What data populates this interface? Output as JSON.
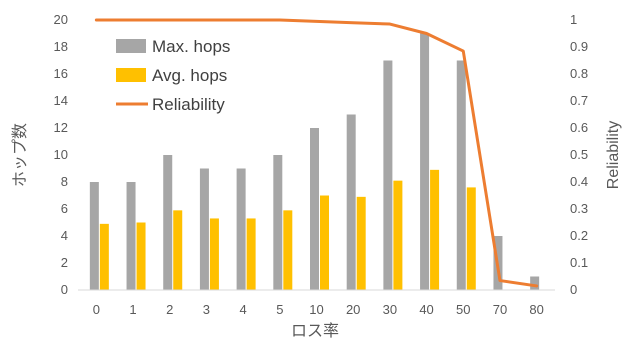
{
  "chart_data": {
    "type": "bar",
    "categories": [
      "0",
      "1",
      "2",
      "3",
      "4",
      "5",
      "10",
      "20",
      "30",
      "40",
      "50",
      "70",
      "80"
    ],
    "series": [
      {
        "name": "Max. hops",
        "type": "bar",
        "axis": "left",
        "color": "#a6a6a6",
        "values": [
          8,
          8,
          10,
          9,
          9,
          10,
          12,
          13,
          17,
          19,
          17,
          4,
          1
        ]
      },
      {
        "name": "Avg. hops",
        "type": "bar",
        "axis": "left",
        "color": "#ffc000",
        "values": [
          4.9,
          5.0,
          5.9,
          5.3,
          5.3,
          5.9,
          7.0,
          6.9,
          8.1,
          8.9,
          7.6,
          0,
          0
        ]
      },
      {
        "name": "Reliability",
        "type": "line",
        "axis": "right",
        "color": "#ed7d31",
        "values": [
          1.0,
          1.0,
          1.0,
          1.0,
          1.0,
          1.0,
          0.995,
          0.99,
          0.985,
          0.95,
          0.885,
          0.035,
          0.015
        ]
      }
    ],
    "title": "",
    "xlabel": "ロス率",
    "ylabel": "ホップ数",
    "y2label": "Reliability",
    "ylim": [
      0,
      20
    ],
    "y2lim": [
      0,
      1
    ],
    "yticks": [
      "0",
      "2",
      "4",
      "6",
      "8",
      "10",
      "12",
      "14",
      "16",
      "18",
      "20"
    ],
    "y2ticks": [
      "0",
      "0.1",
      "0.2",
      "0.3",
      "0.4",
      "0.5",
      "0.6",
      "0.7",
      "0.8",
      "0.9",
      "1"
    ],
    "grid": false,
    "legend": "top-left"
  }
}
